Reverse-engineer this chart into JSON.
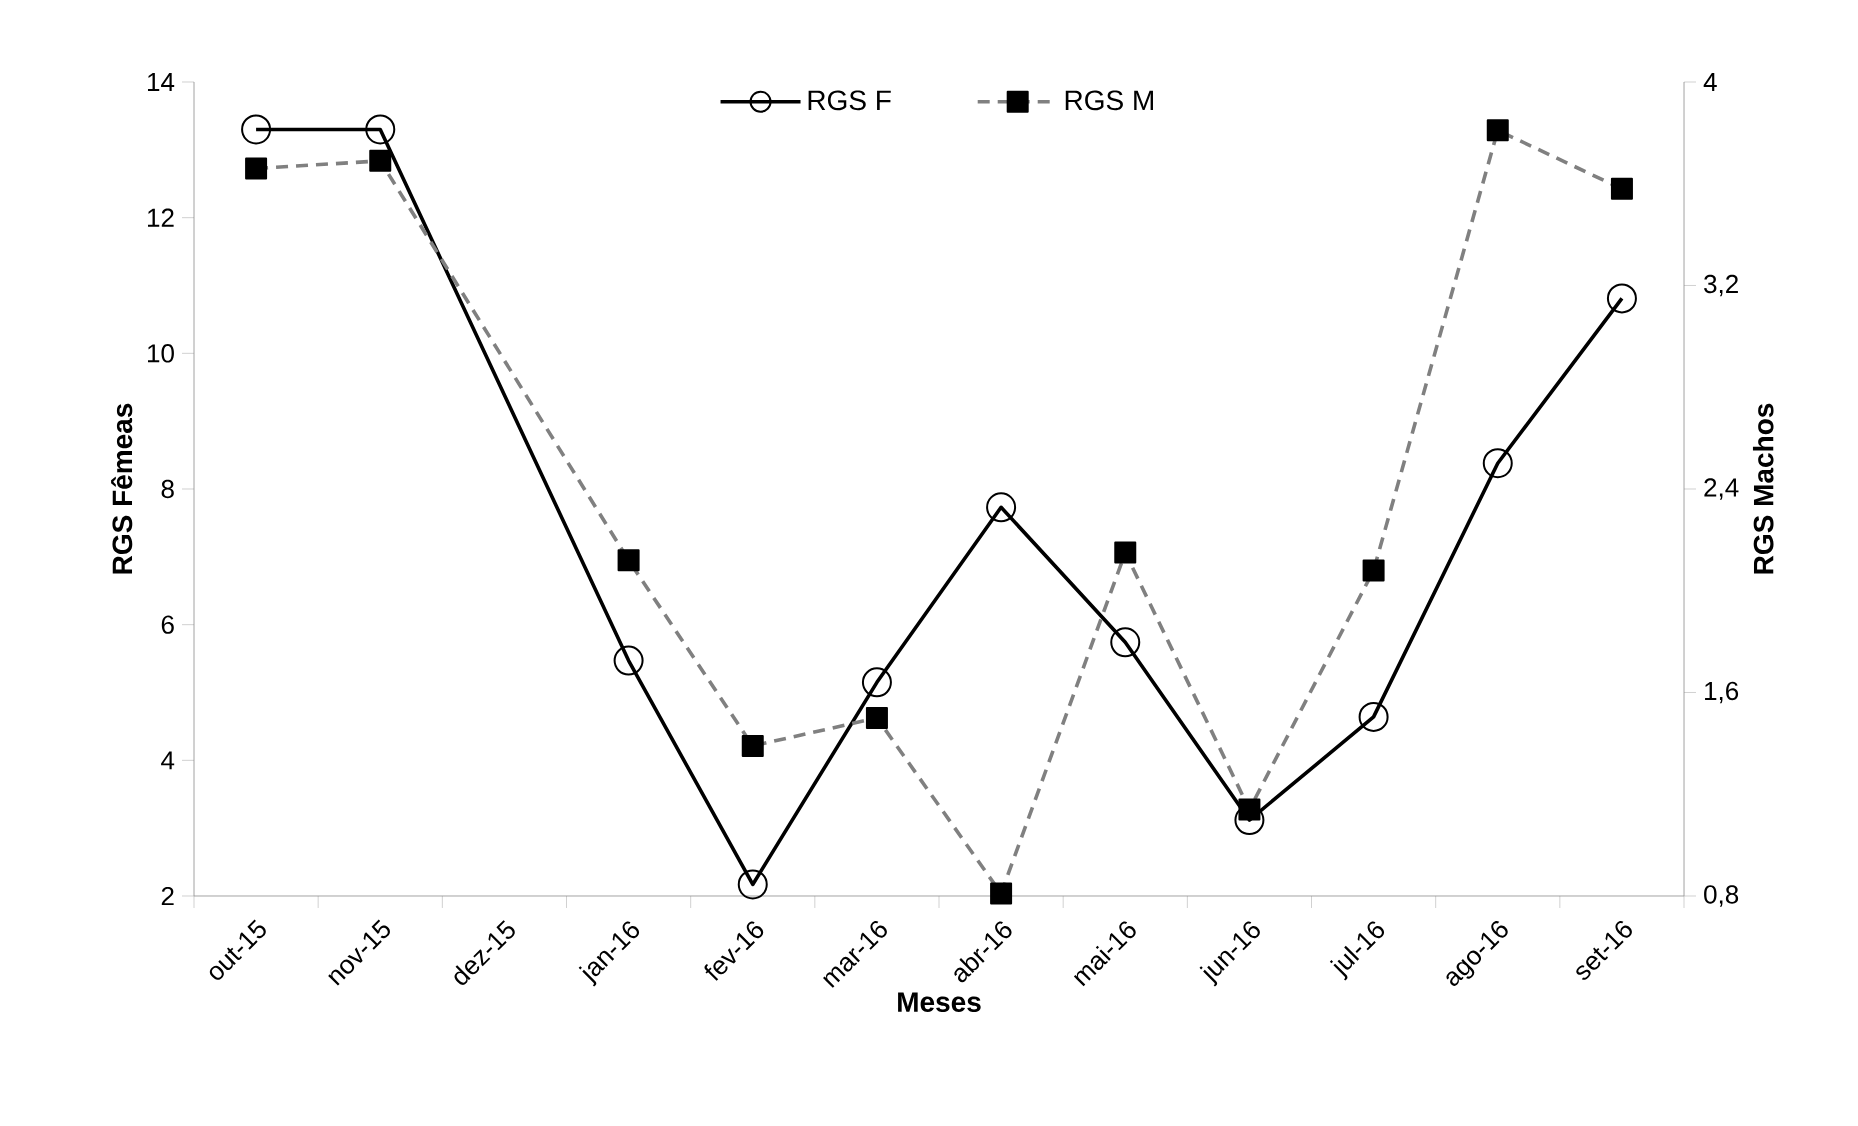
{
  "chart_data": {
    "type": "line",
    "xlabel": "Meses",
    "ylabel": "RGS Fêmeas",
    "y2label": "RGS Machos",
    "categories": [
      "out-15",
      "nov-15",
      "dez-15",
      "jan-16",
      "fev-16",
      "mar-16",
      "abr-16",
      "mai-16",
      "jun-16",
      "jul-16",
      "ago-16",
      "set-16"
    ],
    "series": [
      {
        "name": "RGS F",
        "color": "#000000",
        "marker": "circle",
        "line_style": "solid",
        "values": [
          13.3,
          13.3,
          null,
          5.47,
          2.17,
          5.15,
          7.73,
          5.74,
          3.12,
          4.64,
          8.38,
          10.81
        ]
      },
      {
        "name": "RGS M",
        "color": "#808080",
        "marker": "square",
        "line_style": "dashed",
        "axis": "y2",
        "values": [
          3.66,
          3.69,
          null,
          2.12,
          1.39,
          1.5,
          0.81,
          2.15,
          1.14,
          2.08,
          3.81,
          3.58
        ]
      }
    ],
    "ylim": [
      2,
      14
    ],
    "yticks": [
      2,
      4,
      6,
      8,
      10,
      12,
      14
    ],
    "y2lim": [
      0.8,
      4
    ],
    "y2ticks": [
      {
        "value": 0.8,
        "label": "0,8"
      },
      {
        "value": 1.6,
        "label": "1,6"
      },
      {
        "value": 2.4,
        "label": "2,4"
      },
      {
        "value": 3.2,
        "label": "3,2"
      },
      4
    ],
    "grid": false,
    "legend": "top"
  }
}
